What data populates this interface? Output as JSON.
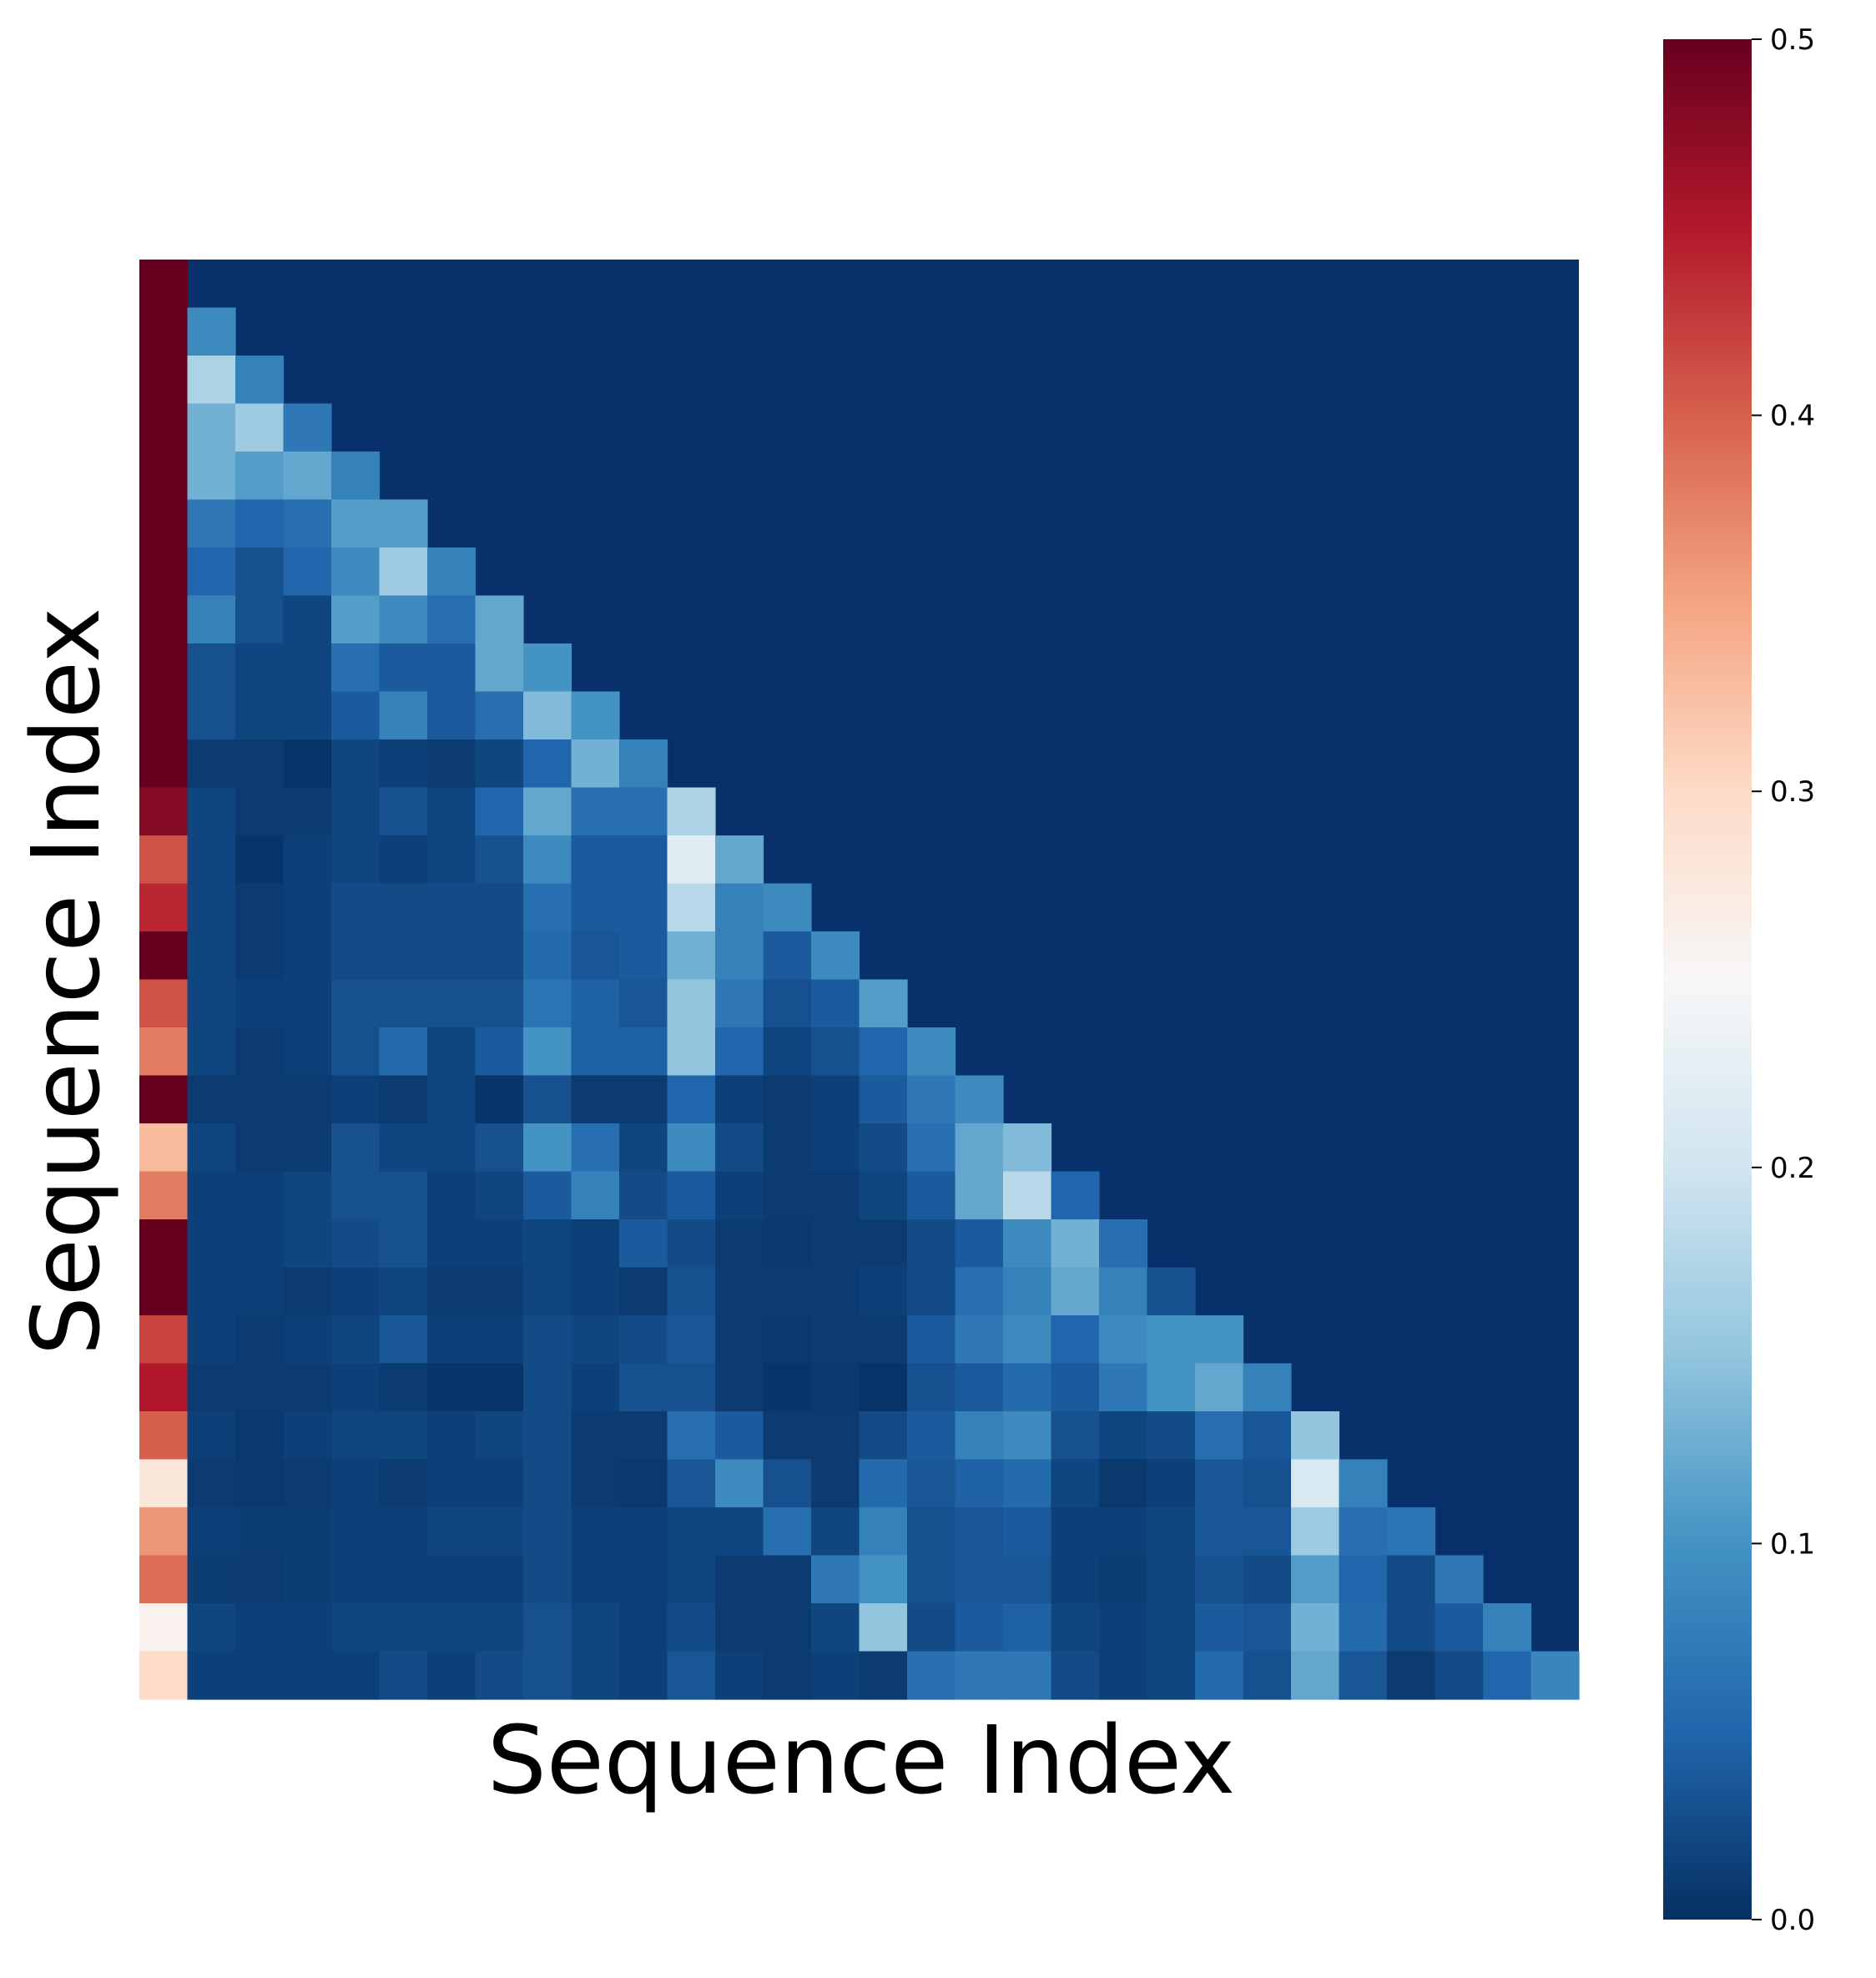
{
  "chart_data": {
    "type": "heatmap",
    "title": "",
    "xlabel": "Sequence Index",
    "ylabel": "Sequence Index",
    "rows": 30,
    "cols": 30,
    "mask": "upper-triangle",
    "colormap": "RdBu_r",
    "colorbar": {
      "min": 0.0,
      "max": 0.5,
      "ticks": [
        "0.0",
        "0.1",
        "0.2",
        "0.3",
        "0.4",
        "0.5"
      ]
    },
    "values": [
      [
        0.5
      ],
      [
        0.5,
        0.09
      ],
      [
        0.5,
        0.17,
        0.08
      ],
      [
        0.5,
        0.13,
        0.16,
        0.07
      ],
      [
        0.5,
        0.13,
        0.11,
        0.12,
        0.08
      ],
      [
        0.5,
        0.07,
        0.05,
        0.06,
        0.11,
        0.11
      ],
      [
        0.5,
        0.05,
        0.03,
        0.05,
        0.09,
        0.16,
        0.08
      ],
      [
        0.5,
        0.08,
        0.03,
        0.02,
        0.11,
        0.09,
        0.06,
        0.12
      ],
      [
        0.5,
        0.03,
        0.02,
        0.02,
        0.06,
        0.04,
        0.04,
        0.12,
        0.1
      ],
      [
        0.5,
        0.03,
        0.02,
        0.02,
        0.04,
        0.08,
        0.04,
        0.06,
        0.14,
        0.1
      ],
      [
        0.5,
        0.01,
        0.01,
        0.005,
        0.02,
        0.015,
        0.01,
        0.02,
        0.05,
        0.13,
        0.08
      ],
      [
        0.48,
        0.02,
        0.01,
        0.01,
        0.02,
        0.03,
        0.02,
        0.05,
        0.12,
        0.06,
        0.06,
        0.17
      ],
      [
        0.41,
        0.02,
        0.005,
        0.015,
        0.02,
        0.015,
        0.02,
        0.03,
        0.09,
        0.04,
        0.04,
        0.22,
        0.12
      ],
      [
        0.44,
        0.02,
        0.01,
        0.015,
        0.025,
        0.025,
        0.025,
        0.025,
        0.06,
        0.04,
        0.04,
        0.18,
        0.08,
        0.09
      ],
      [
        0.5,
        0.02,
        0.01,
        0.015,
        0.025,
        0.025,
        0.025,
        0.025,
        0.055,
        0.035,
        0.04,
        0.13,
        0.08,
        0.04,
        0.09
      ],
      [
        0.41,
        0.02,
        0.015,
        0.015,
        0.03,
        0.03,
        0.03,
        0.03,
        0.065,
        0.045,
        0.035,
        0.15,
        0.07,
        0.03,
        0.04,
        0.11
      ],
      [
        0.38,
        0.02,
        0.01,
        0.015,
        0.03,
        0.055,
        0.02,
        0.04,
        0.1,
        0.045,
        0.045,
        0.15,
        0.05,
        0.02,
        0.03,
        0.05,
        0.09
      ],
      [
        0.5,
        0.01,
        0.01,
        0.01,
        0.015,
        0.01,
        0.02,
        0.005,
        0.03,
        0.01,
        0.01,
        0.05,
        0.015,
        0.01,
        0.015,
        0.04,
        0.07,
        0.09
      ],
      [
        0.33,
        0.02,
        0.01,
        0.01,
        0.03,
        0.02,
        0.02,
        0.03,
        0.1,
        0.06,
        0.02,
        0.09,
        0.025,
        0.01,
        0.015,
        0.025,
        0.06,
        0.12,
        0.14
      ],
      [
        0.38,
        0.015,
        0.015,
        0.02,
        0.03,
        0.03,
        0.015,
        0.02,
        0.04,
        0.08,
        0.025,
        0.04,
        0.015,
        0.01,
        0.01,
        0.02,
        0.04,
        0.12,
        0.18,
        0.05
      ],
      [
        0.5,
        0.015,
        0.015,
        0.02,
        0.025,
        0.03,
        0.015,
        0.015,
        0.02,
        0.015,
        0.04,
        0.025,
        0.01,
        0.008,
        0.01,
        0.01,
        0.025,
        0.04,
        0.09,
        0.13,
        0.06
      ],
      [
        0.5,
        0.015,
        0.015,
        0.01,
        0.015,
        0.02,
        0.01,
        0.01,
        0.02,
        0.015,
        0.01,
        0.03,
        0.01,
        0.01,
        0.01,
        0.015,
        0.025,
        0.06,
        0.08,
        0.12,
        0.08,
        0.03
      ],
      [
        0.42,
        0.015,
        0.01,
        0.015,
        0.02,
        0.035,
        0.015,
        0.015,
        0.025,
        0.02,
        0.025,
        0.035,
        0.01,
        0.008,
        0.01,
        0.01,
        0.04,
        0.07,
        0.09,
        0.05,
        0.09,
        0.1,
        0.1
      ],
      [
        0.45,
        0.01,
        0.01,
        0.01,
        0.015,
        0.01,
        0.005,
        0.005,
        0.025,
        0.015,
        0.03,
        0.03,
        0.01,
        0.005,
        0.008,
        0.005,
        0.03,
        0.04,
        0.055,
        0.04,
        0.07,
        0.1,
        0.12,
        0.08
      ],
      [
        0.4,
        0.015,
        0.008,
        0.015,
        0.02,
        0.02,
        0.015,
        0.02,
        0.025,
        0.01,
        0.01,
        0.06,
        0.04,
        0.01,
        0.01,
        0.025,
        0.04,
        0.08,
        0.09,
        0.03,
        0.02,
        0.025,
        0.06,
        0.035,
        0.15
      ],
      [
        0.28,
        0.01,
        0.008,
        0.01,
        0.015,
        0.01,
        0.015,
        0.015,
        0.025,
        0.01,
        0.008,
        0.035,
        0.09,
        0.03,
        0.01,
        0.055,
        0.035,
        0.045,
        0.055,
        0.02,
        0.008,
        0.015,
        0.035,
        0.03,
        0.21,
        0.08
      ],
      [
        0.36,
        0.015,
        0.012,
        0.012,
        0.015,
        0.015,
        0.02,
        0.02,
        0.025,
        0.015,
        0.015,
        0.02,
        0.02,
        0.06,
        0.02,
        0.08,
        0.03,
        0.035,
        0.04,
        0.015,
        0.015,
        0.02,
        0.035,
        0.035,
        0.16,
        0.06,
        0.065
      ],
      [
        0.39,
        0.012,
        0.01,
        0.012,
        0.015,
        0.015,
        0.015,
        0.015,
        0.025,
        0.015,
        0.015,
        0.02,
        0.01,
        0.01,
        0.07,
        0.1,
        0.03,
        0.035,
        0.035,
        0.015,
        0.012,
        0.02,
        0.03,
        0.025,
        0.11,
        0.05,
        0.025,
        0.07
      ],
      [
        0.26,
        0.02,
        0.015,
        0.015,
        0.02,
        0.02,
        0.02,
        0.02,
        0.03,
        0.02,
        0.015,
        0.025,
        0.01,
        0.01,
        0.02,
        0.15,
        0.025,
        0.04,
        0.045,
        0.02,
        0.015,
        0.02,
        0.04,
        0.035,
        0.13,
        0.055,
        0.025,
        0.04,
        0.08
      ],
      [
        0.3,
        0.015,
        0.015,
        0.015,
        0.015,
        0.025,
        0.015,
        0.025,
        0.03,
        0.02,
        0.015,
        0.035,
        0.015,
        0.01,
        0.015,
        0.01,
        0.06,
        0.07,
        0.07,
        0.025,
        0.015,
        0.02,
        0.055,
        0.03,
        0.12,
        0.035,
        0.01,
        0.025,
        0.05,
        0.085
      ]
    ]
  }
}
